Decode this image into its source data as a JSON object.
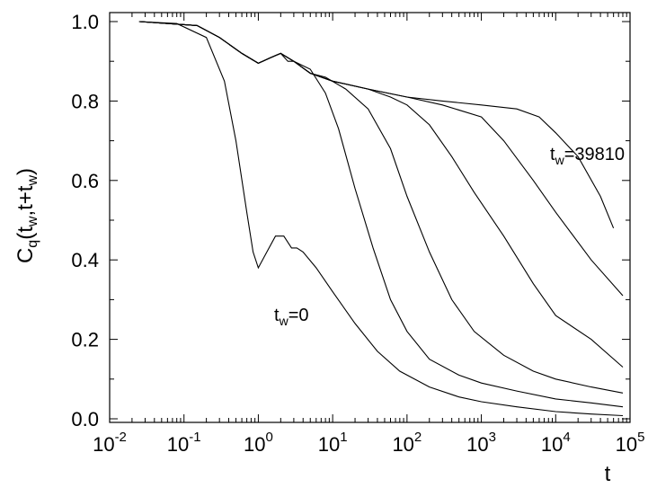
{
  "chart_data": {
    "type": "line",
    "xlabel": "t",
    "ylabel": "C",
    "ylabel_sub1": "q",
    "ylabel_paren_open": "(t",
    "ylabel_sub2": "w",
    "ylabel_mid": ",t+t",
    "ylabel_sub3": "w",
    "ylabel_paren_close": ")",
    "xscale": "log",
    "xlim": [
      0.01,
      100000
    ],
    "ylim": [
      0.0,
      1.0
    ],
    "x_tick_bases": [
      "10",
      "10",
      "10",
      "10",
      "10",
      "10",
      "10",
      "10"
    ],
    "x_tick_exponents": [
      "-2",
      "-1",
      "0",
      "1",
      "2",
      "3",
      "4",
      "5"
    ],
    "y_ticks": [
      "0.0",
      "0.2",
      "0.4",
      "0.6",
      "0.8",
      "1.0"
    ],
    "annotations": [
      {
        "base": "t",
        "sub": "w",
        "rest": "=0"
      },
      {
        "base": "t",
        "sub": "w",
        "rest": "=39810"
      }
    ],
    "series": [
      {
        "points": [
          [
            0.025,
            1.0
          ],
          [
            0.08,
            0.995
          ],
          [
            0.2,
            0.96
          ],
          [
            0.35,
            0.85
          ],
          [
            0.5,
            0.7
          ],
          [
            0.7,
            0.52
          ],
          [
            0.85,
            0.42
          ],
          [
            1.0,
            0.38
          ],
          [
            1.3,
            0.42
          ],
          [
            1.7,
            0.46
          ],
          [
            2.2,
            0.46
          ],
          [
            2.8,
            0.43
          ],
          [
            3.3,
            0.43
          ],
          [
            4,
            0.42
          ],
          [
            6,
            0.38
          ],
          [
            10,
            0.32
          ],
          [
            20,
            0.24
          ],
          [
            40,
            0.17
          ],
          [
            80,
            0.12
          ],
          [
            200,
            0.08
          ],
          [
            500,
            0.055
          ],
          [
            1000,
            0.043
          ],
          [
            3000,
            0.03
          ],
          [
            10000,
            0.018
          ],
          [
            30000,
            0.012
          ],
          [
            80000,
            0.008
          ]
        ]
      },
      {
        "points": [
          [
            0.025,
            1.0
          ],
          [
            0.15,
            0.99
          ],
          [
            0.3,
            0.96
          ],
          [
            0.6,
            0.92
          ],
          [
            1.0,
            0.895
          ],
          [
            1.5,
            0.91
          ],
          [
            2.0,
            0.92
          ],
          [
            2.5,
            0.9
          ],
          [
            3,
            0.9
          ],
          [
            5,
            0.88
          ],
          [
            8,
            0.82
          ],
          [
            12,
            0.73
          ],
          [
            20,
            0.58
          ],
          [
            35,
            0.43
          ],
          [
            60,
            0.3
          ],
          [
            100,
            0.22
          ],
          [
            200,
            0.15
          ],
          [
            500,
            0.11
          ],
          [
            1000,
            0.09
          ],
          [
            3000,
            0.07
          ],
          [
            10000,
            0.05
          ],
          [
            30000,
            0.04
          ],
          [
            80000,
            0.03
          ]
        ]
      },
      {
        "points": [
          [
            0.025,
            1.0
          ],
          [
            0.15,
            0.99
          ],
          [
            0.3,
            0.96
          ],
          [
            0.6,
            0.92
          ],
          [
            1.0,
            0.895
          ],
          [
            1.5,
            0.91
          ],
          [
            2.0,
            0.92
          ],
          [
            3,
            0.9
          ],
          [
            5,
            0.87
          ],
          [
            8,
            0.86
          ],
          [
            15,
            0.83
          ],
          [
            30,
            0.78
          ],
          [
            60,
            0.68
          ],
          [
            100,
            0.56
          ],
          [
            200,
            0.42
          ],
          [
            400,
            0.3
          ],
          [
            800,
            0.22
          ],
          [
            2000,
            0.16
          ],
          [
            5000,
            0.12
          ],
          [
            10000,
            0.1
          ],
          [
            30000,
            0.08
          ],
          [
            80000,
            0.065
          ]
        ]
      },
      {
        "points": [
          [
            0.025,
            1.0
          ],
          [
            0.15,
            0.99
          ],
          [
            0.3,
            0.96
          ],
          [
            0.6,
            0.92
          ],
          [
            1.0,
            0.895
          ],
          [
            1.5,
            0.91
          ],
          [
            2.0,
            0.92
          ],
          [
            3,
            0.9
          ],
          [
            5,
            0.87
          ],
          [
            10,
            0.85
          ],
          [
            30,
            0.83
          ],
          [
            60,
            0.81
          ],
          [
            100,
            0.79
          ],
          [
            200,
            0.74
          ],
          [
            400,
            0.66
          ],
          [
            800,
            0.57
          ],
          [
            2000,
            0.46
          ],
          [
            5000,
            0.34
          ],
          [
            10000,
            0.26
          ],
          [
            30000,
            0.2
          ],
          [
            80000,
            0.13
          ]
        ]
      },
      {
        "points": [
          [
            0.025,
            1.0
          ],
          [
            0.15,
            0.99
          ],
          [
            0.3,
            0.96
          ],
          [
            0.6,
            0.92
          ],
          [
            1.0,
            0.895
          ],
          [
            1.5,
            0.91
          ],
          [
            2.0,
            0.92
          ],
          [
            3,
            0.9
          ],
          [
            5,
            0.87
          ],
          [
            10,
            0.85
          ],
          [
            30,
            0.83
          ],
          [
            100,
            0.81
          ],
          [
            300,
            0.79
          ],
          [
            1000,
            0.76
          ],
          [
            2000,
            0.7
          ],
          [
            5000,
            0.6
          ],
          [
            10000,
            0.52
          ],
          [
            30000,
            0.4
          ],
          [
            80000,
            0.31
          ]
        ]
      },
      {
        "points": [
          [
            0.025,
            1.0
          ],
          [
            0.15,
            0.99
          ],
          [
            0.3,
            0.96
          ],
          [
            0.6,
            0.92
          ],
          [
            1.0,
            0.895
          ],
          [
            1.5,
            0.91
          ],
          [
            2.0,
            0.92
          ],
          [
            3,
            0.9
          ],
          [
            5,
            0.87
          ],
          [
            10,
            0.85
          ],
          [
            30,
            0.83
          ],
          [
            100,
            0.81
          ],
          [
            300,
            0.8
          ],
          [
            1000,
            0.79
          ],
          [
            3000,
            0.78
          ],
          [
            6000,
            0.76
          ],
          [
            10000,
            0.72
          ],
          [
            20000,
            0.66
          ],
          [
            40000,
            0.56
          ],
          [
            60000,
            0.48
          ]
        ]
      }
    ]
  }
}
